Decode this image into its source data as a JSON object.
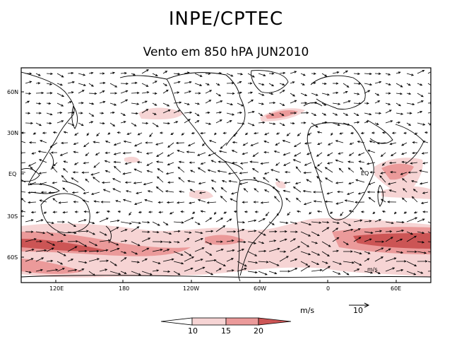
{
  "header": {
    "title": "INPE/CPTEC",
    "subtitle": "Vento em 850 hPA JUN2010"
  },
  "map": {
    "lat_labels": [
      "60N",
      "30N",
      "EQ",
      "30S",
      "60S"
    ],
    "lon_labels": [
      "120E",
      "180",
      "120W",
      "60W",
      "0",
      "60E"
    ],
    "inner_labels": [
      "EQ",
      "m/s"
    ],
    "colors": {
      "shade_10": "#f6d4d4",
      "shade_15": "#eb9a9a",
      "shade_20": "#cc5555",
      "coast": "#000000",
      "arrow": "#000000"
    }
  },
  "legend": {
    "units": "m/s",
    "reference_vector": "10",
    "colorbar_labels": [
      "10",
      "15",
      "20"
    ]
  }
}
